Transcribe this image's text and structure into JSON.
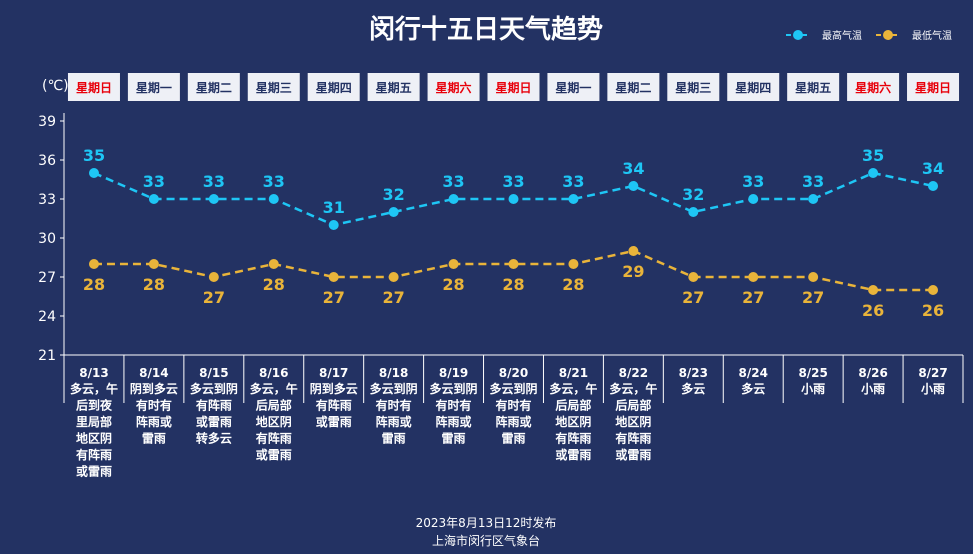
{
  "title": "闵行十五日天气趋势",
  "unit_label": "(℃)",
  "footer": {
    "line1": "2023年8月13日12时发布",
    "line2": "上海市闵行区气象台"
  },
  "colors": {
    "background": "#233263",
    "high": "#1ec6f5",
    "low": "#e9b43a",
    "weekend": "#e8000b",
    "weekday": "#233263",
    "day_box": "#eef0f6"
  },
  "chart_data": {
    "type": "line",
    "title": "闵行十五日天气趋势",
    "ylabel": "(℃)",
    "ylim": [
      21,
      39
    ],
    "yticks": [
      21,
      24,
      27,
      30,
      33,
      36,
      39
    ],
    "legend_position": "top-right",
    "grid": false,
    "categories": [
      "8/13",
      "8/14",
      "8/15",
      "8/16",
      "8/17",
      "8/18",
      "8/19",
      "8/20",
      "8/21",
      "8/22",
      "8/23",
      "8/24",
      "8/25",
      "8/26",
      "8/27"
    ],
    "weekdays": [
      "星期日",
      "星期一",
      "星期二",
      "星期三",
      "星期四",
      "星期五",
      "星期六",
      "星期日",
      "星期一",
      "星期二",
      "星期三",
      "星期四",
      "星期五",
      "星期六",
      "星期日"
    ],
    "weekend_flags": [
      true,
      false,
      false,
      false,
      false,
      false,
      true,
      true,
      false,
      false,
      false,
      false,
      false,
      true,
      true
    ],
    "conditions": [
      [
        "多云，午",
        "后到夜",
        "里局部",
        "地区阴",
        "有阵雨",
        "或雷雨"
      ],
      [
        "阴到多云",
        "有时有",
        "阵雨或",
        "雷雨"
      ],
      [
        "多云到阴",
        "有阵雨",
        "或雷雨",
        "转多云"
      ],
      [
        "多云，午",
        "后局部",
        "地区阴",
        "有阵雨",
        "或雷雨"
      ],
      [
        "阴到多云",
        "有阵雨",
        "或雷雨"
      ],
      [
        "多云到阴",
        "有时有",
        "阵雨或",
        "雷雨"
      ],
      [
        "多云到阴",
        "有时有",
        "阵雨或",
        "雷雨"
      ],
      [
        "多云到阴",
        "有时有",
        "阵雨或",
        "雷雨"
      ],
      [
        "多云，午",
        "后局部",
        "地区阴",
        "有阵雨",
        "或雷雨"
      ],
      [
        "多云，午",
        "后局部",
        "地区阴",
        "有阵雨",
        "或雷雨"
      ],
      [
        "多云"
      ],
      [
        "多云"
      ],
      [
        "小雨"
      ],
      [
        "小雨"
      ],
      [
        "小雨"
      ]
    ],
    "series": [
      {
        "name": "最高气温",
        "values": [
          35,
          33,
          33,
          33,
          31,
          32,
          33,
          33,
          33,
          34,
          32,
          33,
          33,
          35,
          34
        ]
      },
      {
        "name": "最低气温",
        "values": [
          28,
          28,
          27,
          28,
          27,
          27,
          28,
          28,
          28,
          29,
          27,
          27,
          27,
          26,
          26
        ]
      }
    ]
  }
}
